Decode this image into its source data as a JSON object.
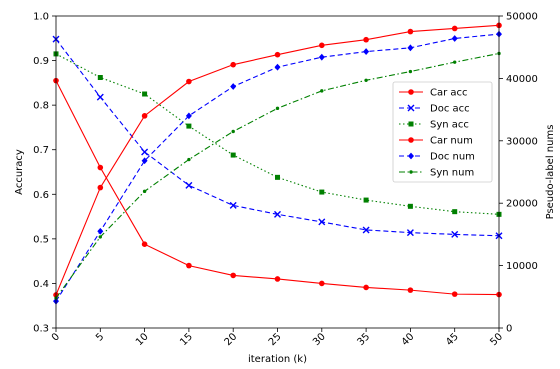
{
  "chart_data": {
    "type": "line",
    "title": "",
    "xlabel": "iteration (k)",
    "ylabel_left": "Accuracy",
    "ylabel_right": "Pseudo-label nums",
    "x": [
      0,
      5,
      10,
      15,
      20,
      25,
      30,
      35,
      40,
      45,
      50
    ],
    "x_ticks": [
      "0",
      "5",
      "10",
      "15",
      "20",
      "25",
      "30",
      "35",
      "40",
      "45",
      "50"
    ],
    "xlim": [
      0,
      50
    ],
    "ylim_left": [
      0.3,
      1.0
    ],
    "y_ticks_left": [
      "0.3",
      "0.4",
      "0.5",
      "0.6",
      "0.7",
      "0.8",
      "0.9",
      "1.0"
    ],
    "ylim_right": [
      0,
      50000
    ],
    "y_ticks_right": [
      "0",
      "10000",
      "20000",
      "30000",
      "40000",
      "50000"
    ],
    "grid": false,
    "legend_position": "center-right",
    "series": [
      {
        "name": "Car acc",
        "axis": "left",
        "color": "#ff0000",
        "linestyle": "solid",
        "marker": "circle",
        "values": [
          0.855,
          0.66,
          0.488,
          0.44,
          0.418,
          0.41,
          0.4,
          0.391,
          0.385,
          0.376,
          0.375
        ]
      },
      {
        "name": "Doc acc",
        "axis": "left",
        "color": "#0000ff",
        "linestyle": "dashed",
        "marker": "x",
        "values": [
          0.948,
          0.818,
          0.695,
          0.62,
          0.575,
          0.555,
          0.538,
          0.52,
          0.514,
          0.51,
          0.507
        ]
      },
      {
        "name": "Syn acc",
        "axis": "left",
        "color": "#008000",
        "linestyle": "dotted",
        "marker": "square",
        "values": [
          0.915,
          0.862,
          0.825,
          0.753,
          0.688,
          0.638,
          0.605,
          0.587,
          0.573,
          0.561,
          0.555
        ]
      },
      {
        "name": "Car num",
        "axis": "right",
        "color": "#ff0000",
        "linestyle": "solid",
        "marker": "circle",
        "values": [
          5300,
          22500,
          34000,
          39500,
          42200,
          43800,
          45300,
          46200,
          47500,
          48000,
          48500
        ]
      },
      {
        "name": "Doc num",
        "axis": "right",
        "color": "#0000ff",
        "linestyle": "dashed",
        "marker": "diamond",
        "values": [
          4300,
          15500,
          26800,
          34000,
          38700,
          41800,
          43400,
          44300,
          44900,
          46400,
          47100
        ]
      },
      {
        "name": "Syn num",
        "axis": "right",
        "color": "#008000",
        "linestyle": "dashdot",
        "marker": "dot",
        "values": [
          4800,
          14600,
          21900,
          27000,
          31500,
          35200,
          38000,
          39700,
          41100,
          42600,
          44000
        ]
      }
    ]
  }
}
